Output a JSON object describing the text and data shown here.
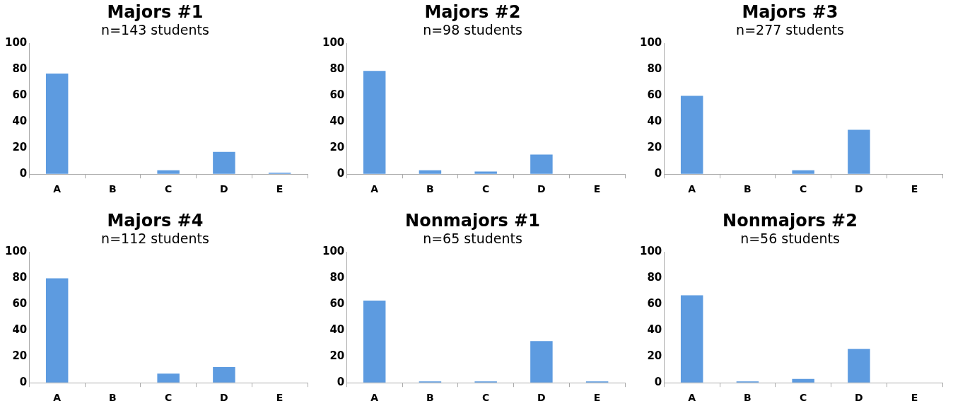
{
  "chart_data": [
    {
      "type": "bar",
      "title": "Majors #1",
      "subtitle": "n=143 students",
      "categories": [
        "A",
        "B",
        "C",
        "D",
        "E"
      ],
      "values": [
        77,
        0,
        3,
        17,
        1
      ],
      "color": "#5d9be0",
      "ylim": [
        0,
        100
      ],
      "yticks": [
        0,
        20,
        40,
        60,
        80,
        100
      ],
      "grid": false,
      "legend": false
    },
    {
      "type": "bar",
      "title": "Majors #2",
      "subtitle": "n=98 students",
      "categories": [
        "A",
        "B",
        "C",
        "D",
        "E"
      ],
      "values": [
        79,
        3,
        2,
        15,
        0
      ],
      "color": "#5d9be0",
      "ylim": [
        0,
        100
      ],
      "yticks": [
        0,
        20,
        40,
        60,
        80,
        100
      ],
      "grid": false,
      "legend": false
    },
    {
      "type": "bar",
      "title": "Majors #3",
      "subtitle": "n=277 students",
      "categories": [
        "A",
        "B",
        "C",
        "D",
        "E"
      ],
      "values": [
        60,
        0,
        3,
        34,
        0
      ],
      "color": "#5d9be0",
      "ylim": [
        0,
        100
      ],
      "yticks": [
        0,
        20,
        40,
        60,
        80,
        100
      ],
      "grid": false,
      "legend": false
    },
    {
      "type": "bar",
      "title": "Majors #4",
      "subtitle": "n=112 students",
      "categories": [
        "A",
        "B",
        "C",
        "D",
        "E"
      ],
      "values": [
        80,
        0,
        7,
        12,
        0
      ],
      "color": "#5d9be0",
      "ylim": [
        0,
        100
      ],
      "yticks": [
        0,
        20,
        40,
        60,
        80,
        100
      ],
      "grid": false,
      "legend": false
    },
    {
      "type": "bar",
      "title": "Nonmajors #1",
      "subtitle": "n=65 students",
      "categories": [
        "A",
        "B",
        "C",
        "D",
        "E"
      ],
      "values": [
        63,
        1,
        1,
        32,
        1
      ],
      "color": "#5d9be0",
      "ylim": [
        0,
        100
      ],
      "yticks": [
        0,
        20,
        40,
        60,
        80,
        100
      ],
      "grid": false,
      "legend": false
    },
    {
      "type": "bar",
      "title": "Nonmajors #2",
      "subtitle": "n=56 students",
      "categories": [
        "A",
        "B",
        "C",
        "D",
        "E"
      ],
      "values": [
        67,
        1,
        3,
        26,
        0
      ],
      "color": "#5d9be0",
      "ylim": [
        0,
        100
      ],
      "yticks": [
        0,
        20,
        40,
        60,
        80,
        100
      ],
      "grid": false,
      "legend": false
    }
  ]
}
